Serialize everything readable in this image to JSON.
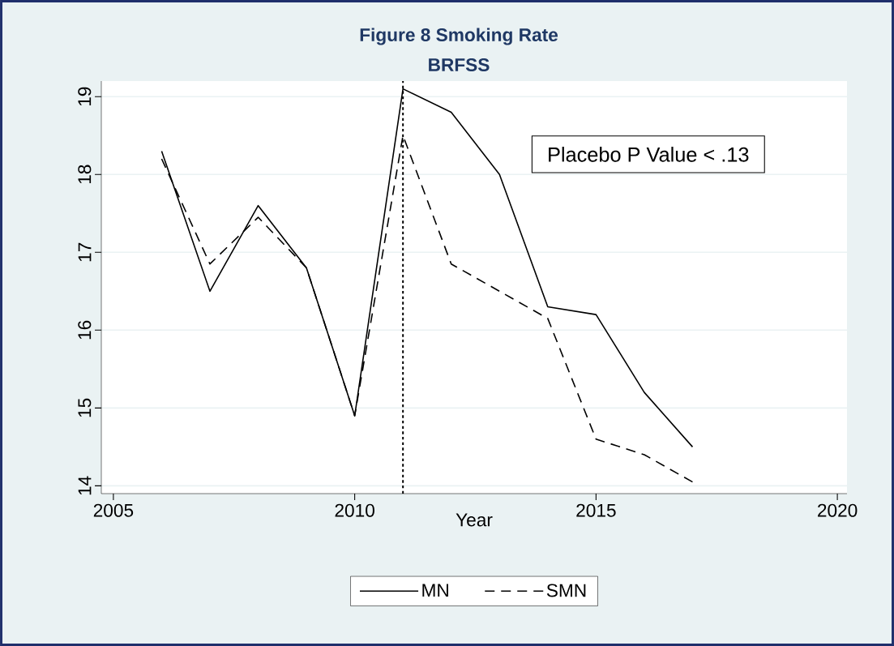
{
  "chart_data": {
    "type": "line",
    "title": "Figure 8   Smoking Rate",
    "subtitle": "BRFSS",
    "xlabel": "Year",
    "x": [
      2006,
      2007,
      2008,
      2009,
      2010,
      2011,
      2012,
      2013,
      2014,
      2015,
      2016,
      2017
    ],
    "series": [
      {
        "name": "MN",
        "color": "#000000",
        "line_style": "solid",
        "values": [
          18.3,
          16.5,
          17.6,
          16.8,
          14.9,
          19.1,
          18.8,
          18.0,
          16.3,
          16.2,
          15.2,
          14.5
        ]
      },
      {
        "name": "SMN",
        "color": "#000000",
        "line_style": "dashed",
        "values": [
          18.2,
          16.85,
          17.45,
          16.8,
          14.9,
          18.5,
          16.85,
          16.5,
          16.15,
          14.6,
          14.4,
          14.05
        ]
      }
    ],
    "xlim": [
      2004.75,
      2020.2
    ],
    "ylim": [
      13.9,
      19.2
    ],
    "xticks": [
      2005,
      2010,
      2015,
      2020
    ],
    "yticks": [
      14,
      15,
      16,
      17,
      18,
      19
    ],
    "grid": "y",
    "legend": "bottom",
    "marker": "none",
    "ref_lines": [
      {
        "axis": "x",
        "value": 2011,
        "line_style": "dotted",
        "color": "#000000"
      }
    ],
    "annotations": [
      "Placebo P Value < .13"
    ]
  }
}
